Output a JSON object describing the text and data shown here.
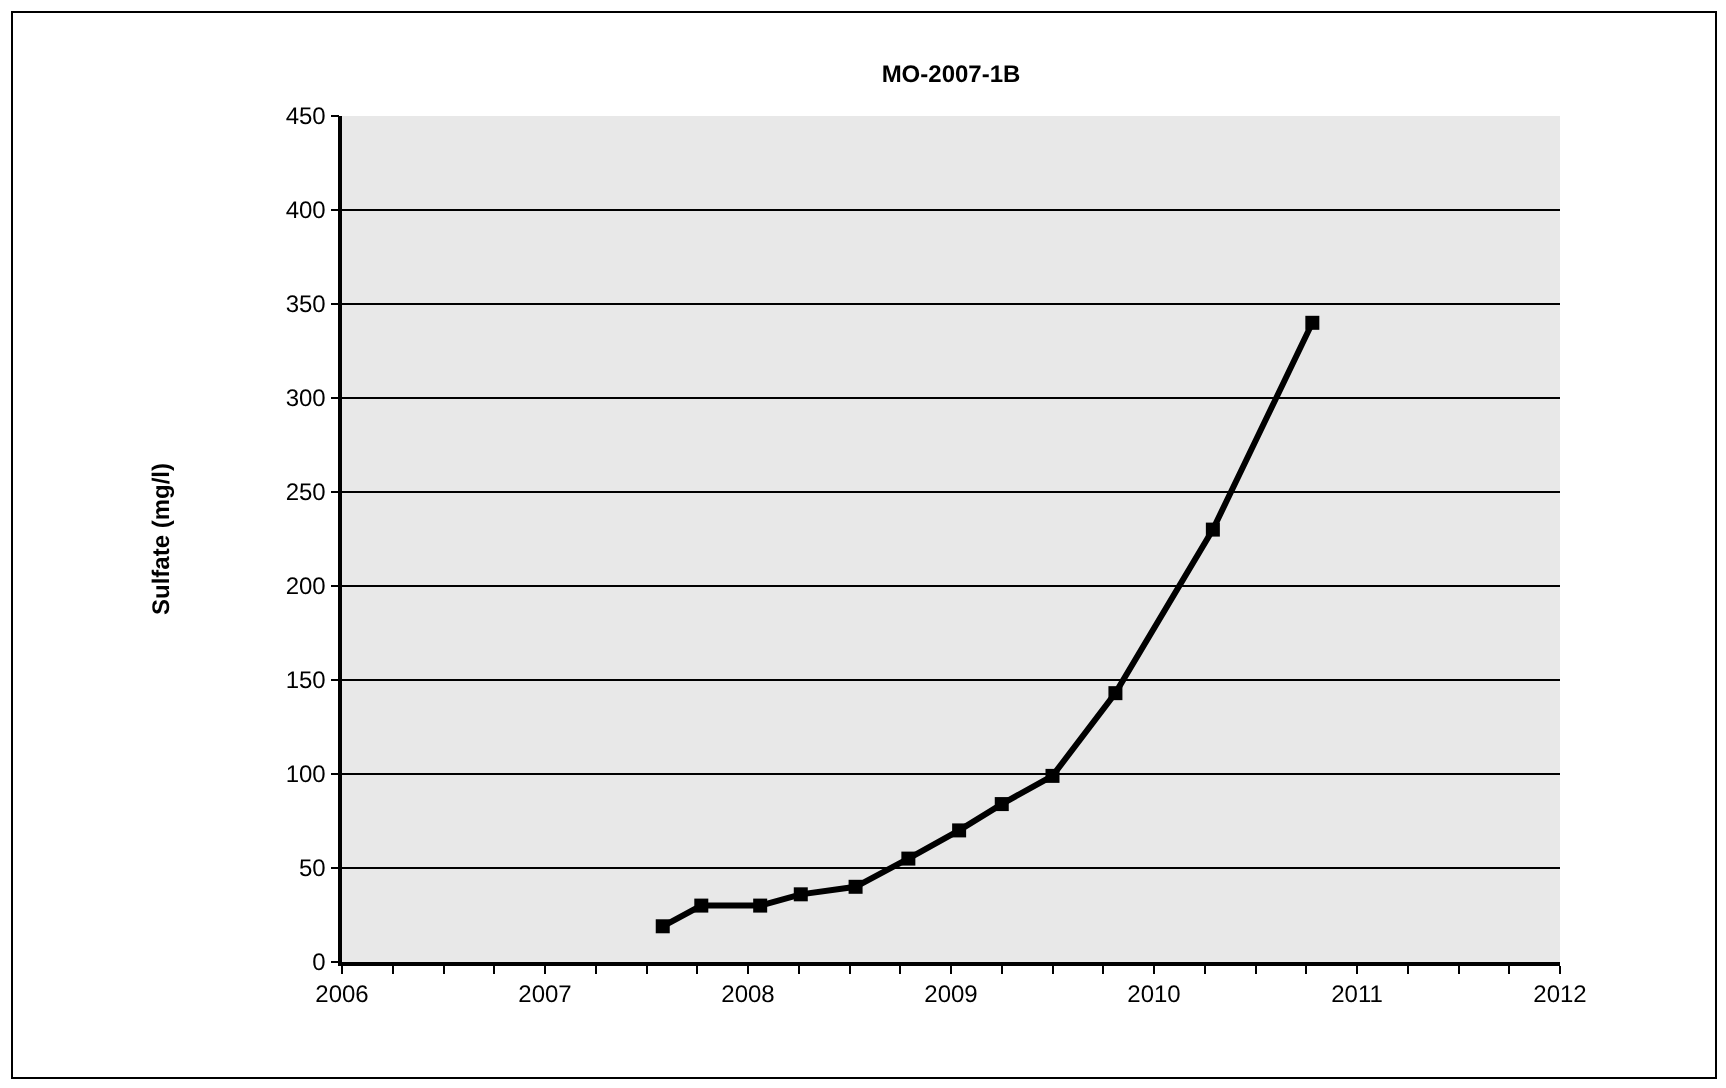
{
  "chart_data": {
    "type": "line",
    "title": "MO-2007-1B",
    "ylabel": "Sulfate (mg/l)",
    "x": [
      2007.58,
      2007.77,
      2008.06,
      2008.26,
      2008.53,
      2008.79,
      2009.04,
      2009.25,
      2009.5,
      2009.81,
      2010.29,
      2010.78
    ],
    "series": [
      {
        "color": "#000000",
        "values": [
          19,
          30,
          30,
          36,
          40,
          55,
          70,
          84,
          99,
          143,
          230,
          340
        ]
      }
    ],
    "xlim": [
      2006,
      2012
    ],
    "xticks": [
      2006,
      {
        "value": 2006.25,
        "label": null
      },
      {
        "value": 2006.5,
        "label": null
      },
      {
        "value": 2006.75,
        "label": null
      },
      2007,
      {
        "value": 2007.25,
        "label": null
      },
      {
        "value": 2007.5,
        "label": null
      },
      {
        "value": 2007.75,
        "label": null
      },
      2008,
      {
        "value": 2008.25,
        "label": null
      },
      {
        "value": 2008.5,
        "label": null
      },
      {
        "value": 2008.75,
        "label": null
      },
      2009,
      {
        "value": 2009.25,
        "label": null
      },
      {
        "value": 2009.5,
        "label": null
      },
      {
        "value": 2009.75,
        "label": null
      },
      2010,
      {
        "value": 2010.25,
        "label": null
      },
      {
        "value": 2010.5,
        "label": null
      },
      {
        "value": 2010.75,
        "label": null
      },
      2011,
      {
        "value": 2011.25,
        "label": null
      },
      {
        "value": 2011.5,
        "label": null
      },
      {
        "value": 2011.75,
        "label": null
      },
      2012
    ],
    "ylim": [
      0,
      450
    ],
    "yticks": [
      0,
      50,
      100,
      150,
      200,
      250,
      300,
      350,
      400,
      450
    ],
    "grid": "y",
    "legend": false,
    "marker": "square",
    "line_style": "solid"
  }
}
